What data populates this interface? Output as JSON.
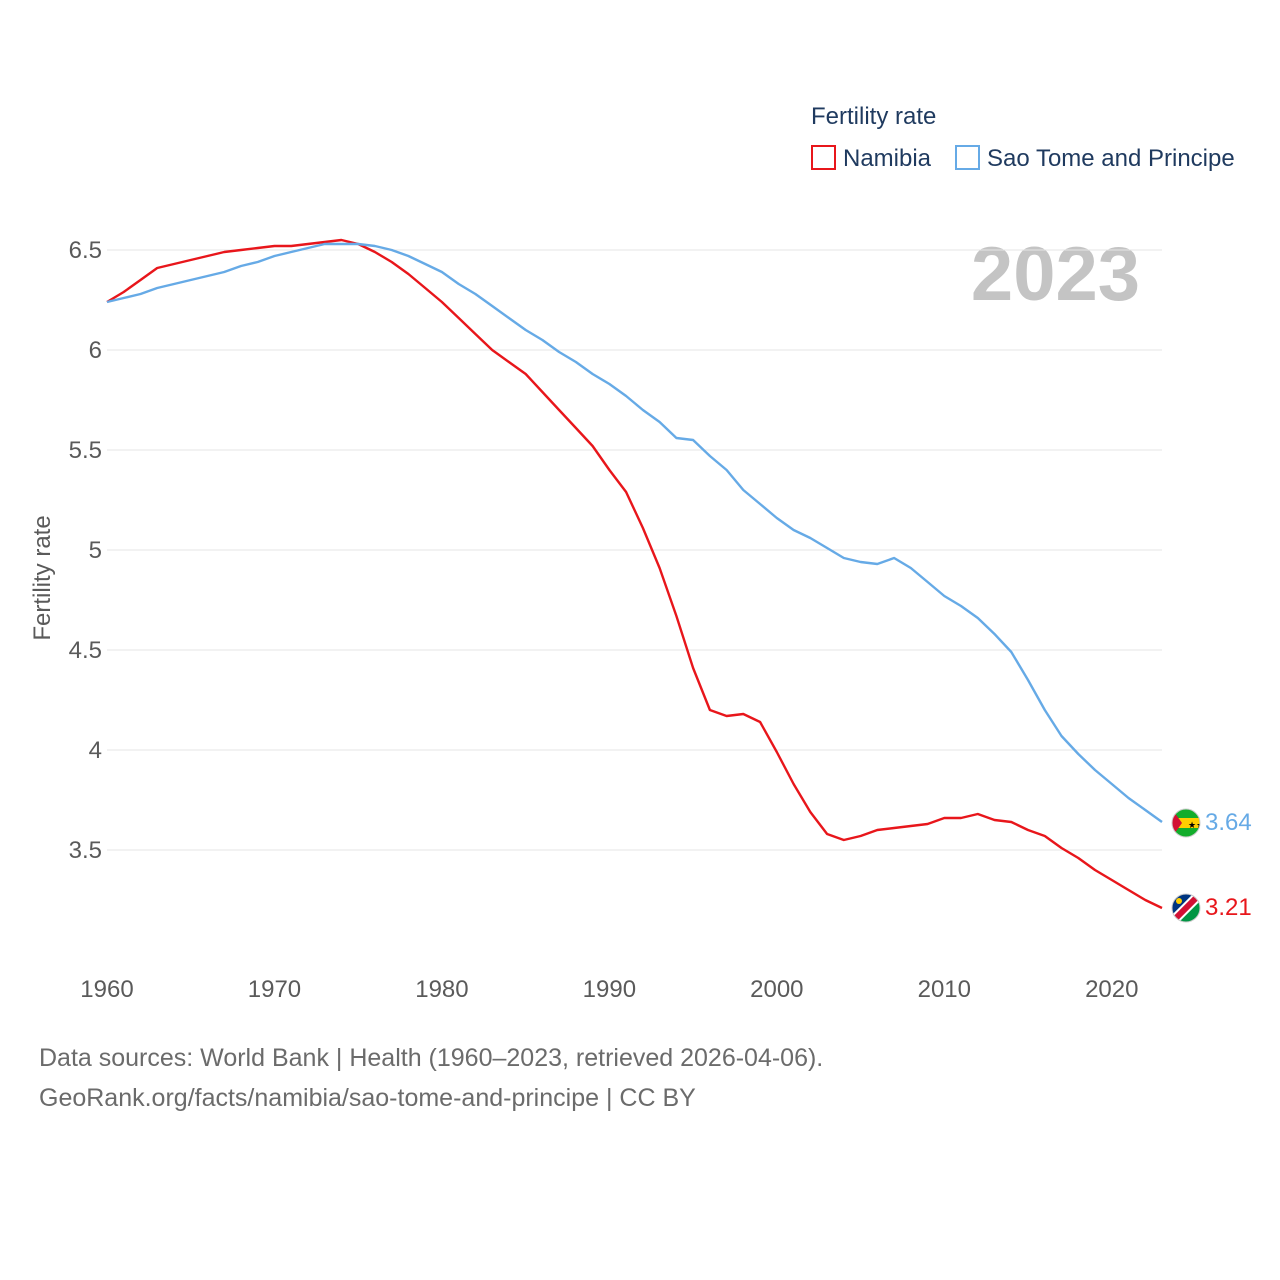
{
  "legend": {
    "title": "Fertility rate",
    "items": [
      {
        "name": "Namibia",
        "color": "#e8161b"
      },
      {
        "name": "Sao Tome and Principe",
        "color": "#66aae6"
      }
    ]
  },
  "year_label": "2023",
  "footer": {
    "line1": "Data sources: World Bank | Health (1960–2023, retrieved 2026-04-06).",
    "line2": "GeoRank.org/facts/namibia/sao-tome-and-principe | CC BY"
  },
  "chart_data": {
    "type": "line",
    "title": "Fertility rate",
    "xlabel": "",
    "ylabel": "Fertility rate",
    "xlim": [
      1960,
      2023
    ],
    "ylim": [
      3.0,
      6.7
    ],
    "x_ticks": [
      1960,
      1970,
      1980,
      1990,
      2000,
      2010,
      2020
    ],
    "y_ticks": [
      3.5,
      4,
      4.5,
      5,
      5.5,
      6,
      6.5
    ],
    "y_tick_labels": [
      "3.5",
      "4",
      "4.5",
      "5",
      "5.5",
      "6",
      "6.5"
    ],
    "grid": true,
    "x": [
      1960,
      1961,
      1962,
      1963,
      1964,
      1965,
      1966,
      1967,
      1968,
      1969,
      1970,
      1971,
      1972,
      1973,
      1974,
      1975,
      1976,
      1977,
      1978,
      1979,
      1980,
      1981,
      1982,
      1983,
      1984,
      1985,
      1986,
      1987,
      1988,
      1989,
      1990,
      1991,
      1992,
      1993,
      1994,
      1995,
      1996,
      1997,
      1998,
      1999,
      2000,
      2001,
      2002,
      2003,
      2004,
      2005,
      2006,
      2007,
      2008,
      2009,
      2010,
      2011,
      2012,
      2013,
      2014,
      2015,
      2016,
      2017,
      2018,
      2019,
      2020,
      2021,
      2022,
      2023
    ],
    "series": [
      {
        "name": "Namibia",
        "color": "#e8161b",
        "end_label": "3.21",
        "values": [
          6.24,
          6.29,
          6.35,
          6.41,
          6.43,
          6.45,
          6.47,
          6.49,
          6.5,
          6.51,
          6.52,
          6.52,
          6.53,
          6.54,
          6.55,
          6.53,
          6.49,
          6.44,
          6.38,
          6.31,
          6.24,
          6.16,
          6.08,
          6.0,
          5.94,
          5.88,
          5.79,
          5.7,
          5.61,
          5.52,
          5.4,
          5.29,
          5.11,
          4.91,
          4.67,
          4.41,
          4.2,
          4.17,
          4.18,
          4.14,
          3.99,
          3.83,
          3.69,
          3.58,
          3.55,
          3.57,
          3.6,
          3.61,
          3.62,
          3.63,
          3.66,
          3.66,
          3.68,
          3.65,
          3.64,
          3.6,
          3.57,
          3.51,
          3.46,
          3.4,
          3.35,
          3.3,
          3.25,
          3.21
        ]
      },
      {
        "name": "Sao Tome and Principe",
        "color": "#66aae6",
        "end_label": "3.64",
        "values": [
          6.24,
          6.26,
          6.28,
          6.31,
          6.33,
          6.35,
          6.37,
          6.39,
          6.42,
          6.44,
          6.47,
          6.49,
          6.51,
          6.53,
          6.53,
          6.53,
          6.52,
          6.5,
          6.47,
          6.43,
          6.39,
          6.33,
          6.28,
          6.22,
          6.16,
          6.1,
          6.05,
          5.99,
          5.94,
          5.88,
          5.83,
          5.77,
          5.7,
          5.64,
          5.56,
          5.55,
          5.47,
          5.4,
          5.3,
          5.23,
          5.16,
          5.1,
          5.06,
          5.01,
          4.96,
          4.94,
          4.93,
          4.96,
          4.91,
          4.84,
          4.77,
          4.72,
          4.66,
          4.58,
          4.49,
          4.35,
          4.2,
          4.07,
          3.98,
          3.9,
          3.83,
          3.76,
          3.7,
          3.64
        ]
      }
    ]
  }
}
